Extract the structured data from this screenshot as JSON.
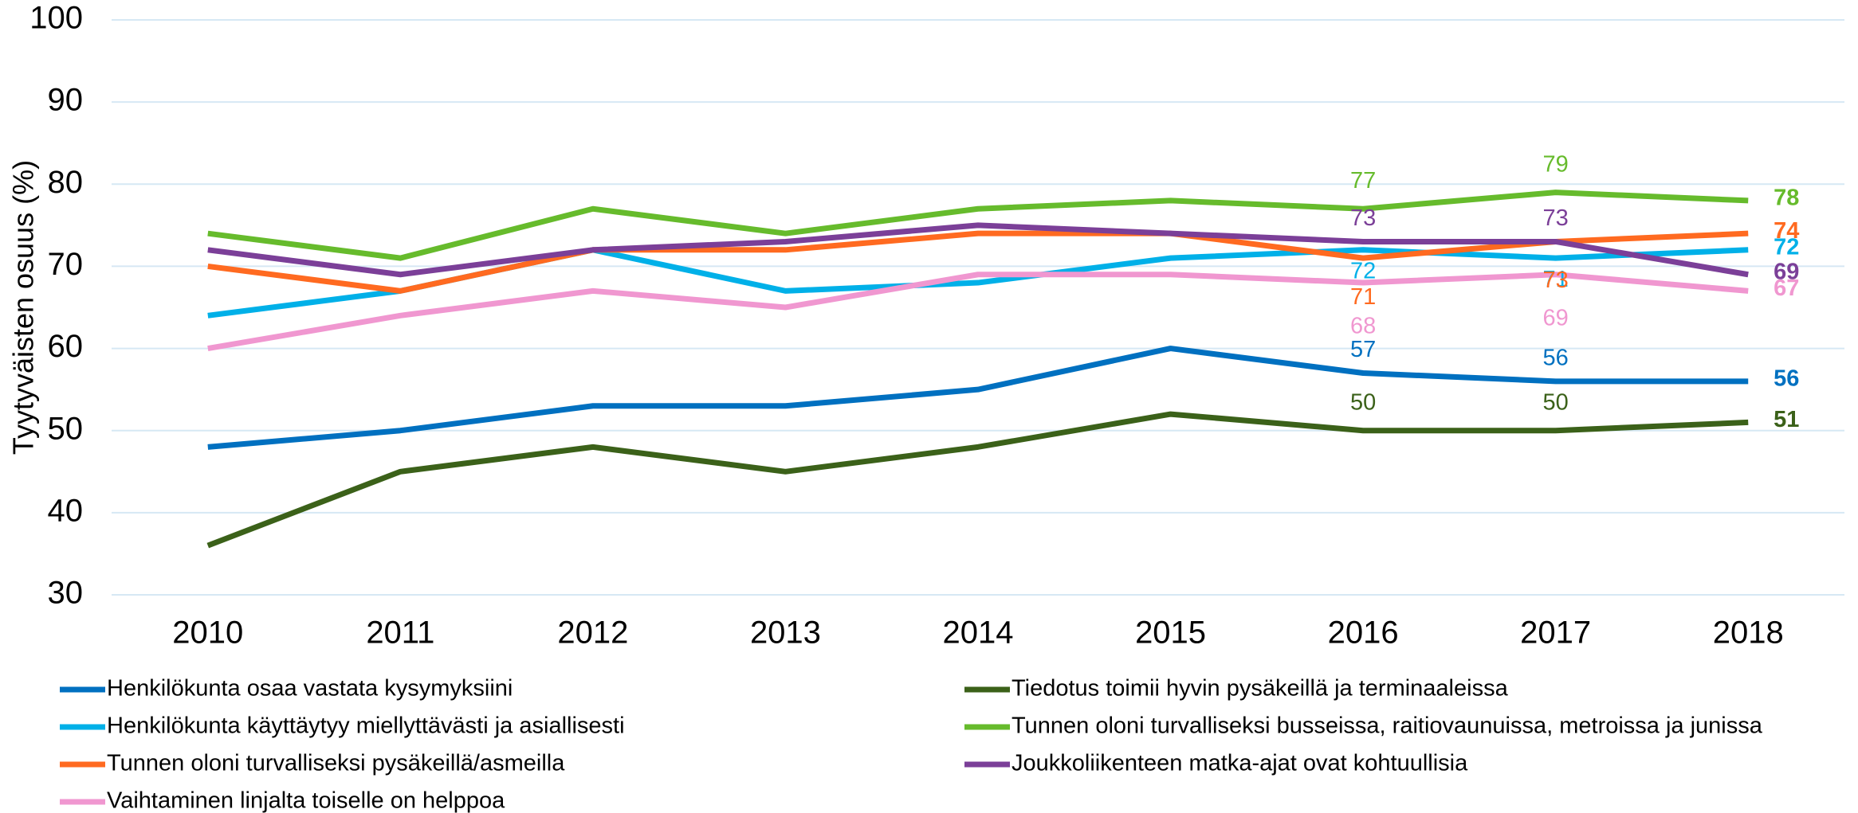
{
  "chart_data": {
    "type": "line",
    "y_label": "Tyytyväisten osuus (%)",
    "categories": [
      "2010",
      "2011",
      "2012",
      "2013",
      "2014",
      "2015",
      "2016",
      "2017",
      "2018"
    ],
    "ylim": [
      30,
      100
    ],
    "yticks": [
      30,
      40,
      50,
      60,
      70,
      80,
      90,
      100
    ],
    "grid": true,
    "data_label_indices": [
      6,
      7,
      8
    ],
    "series": [
      {
        "name": "Henkilökunta osaa vastata kysymyksiini",
        "color": "#0070c0",
        "values": [
          48,
          50,
          53,
          53,
          55,
          60,
          57,
          56,
          56
        ]
      },
      {
        "name": "Tiedotus toimii hyvin pysäkeillä ja terminaaleissa",
        "color": "#3b6119",
        "values": [
          36,
          45,
          48,
          45,
          48,
          52,
          50,
          50,
          51
        ]
      },
      {
        "name": "Henkilökunta käyttäytyy miellyttävästi ja asiallisesti",
        "color": "#00b0e8",
        "values": [
          64,
          67,
          72,
          67,
          68,
          71,
          72,
          71,
          72
        ]
      },
      {
        "name": "Tunnen oloni turvalliseksi busseissa, raitiovaunuissa, metroissa ja junissa",
        "color": "#66bb2c",
        "values": [
          74,
          71,
          77,
          74,
          77,
          78,
          77,
          79,
          78
        ]
      },
      {
        "name": "Tunnen oloni turvalliseksi pysäkeillä/asmeilla",
        "color": "#ff6a20",
        "values": [
          70,
          67,
          72,
          72,
          74,
          74,
          71,
          73,
          74
        ]
      },
      {
        "name": "Joukkoliikenteen matka-ajat ovat kohtuullisia",
        "color": "#7b3f98",
        "values": [
          72,
          69,
          72,
          73,
          75,
          74,
          73,
          73,
          69
        ]
      },
      {
        "name": "Vaihtaminen linjalta toiselle on helppoa",
        "color": "#f097d0",
        "values": [
          60,
          64,
          67,
          65,
          69,
          69,
          68,
          69,
          67
        ]
      }
    ]
  }
}
